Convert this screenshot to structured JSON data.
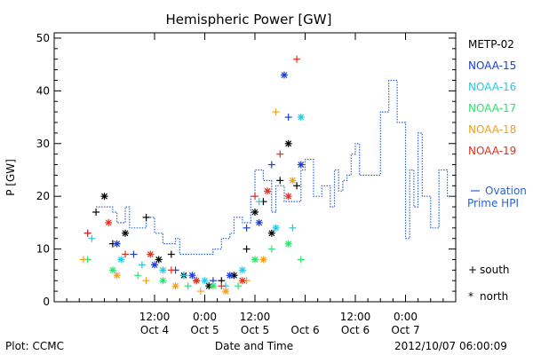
{
  "chart_data": {
    "type": "scatter",
    "title": "Hemispheric Power [GW]",
    "ylabel": "P [GW]",
    "xlabel": "Date and Time",
    "footer_left": "Plot: CCMC",
    "footer_right": "2012/10/07 06:00:09",
    "ylim": [
      0,
      51
    ],
    "xlim": [
      "2012-10-03 12:00",
      "2012-10-07 12:00"
    ],
    "yticks": [
      0,
      10,
      20,
      30,
      40,
      50
    ],
    "xticks": [
      {
        "t": "2012-10-04 12:00",
        "time": "12:00",
        "date": "Oct 4"
      },
      {
        "t": "2012-10-05 00:00",
        "time": "0:00",
        "date": "Oct 5"
      },
      {
        "t": "2012-10-05 12:00",
        "time": "12:00",
        "date": "Oct 5"
      },
      {
        "t": "2012-10-06 00:00",
        "time": "",
        "date": "Oct 6"
      },
      {
        "t": "2012-10-06 12:00",
        "time": "12:00",
        "date": "Oct 6"
      },
      {
        "t": "2012-10-07 00:00",
        "time": "0:00",
        "date": "Oct 7"
      }
    ],
    "ovation_label_1": "Ovation",
    "ovation_label_2": "Prime HPI",
    "ovation_color": "#2a64d0",
    "ovation": {
      "x": [
        "2012-10-03 22:00",
        "2012-10-04 02:00",
        "2012-10-04 03:00",
        "2012-10-04 05:00",
        "2012-10-04 06:00",
        "2012-10-04 10:00",
        "2012-10-04 12:00",
        "2012-10-04 14:00",
        "2012-10-04 17:00",
        "2012-10-04 18:00",
        "2012-10-04 20:00",
        "2012-10-05 00:00",
        "2012-10-05 02:00",
        "2012-10-05 04:00",
        "2012-10-05 06:00",
        "2012-10-05 07:00",
        "2012-10-05 09:00",
        "2012-10-05 11:00",
        "2012-10-05 12:00",
        "2012-10-05 14:00",
        "2012-10-05 16:00",
        "2012-10-05 17:00",
        "2012-10-05 19:00",
        "2012-10-05 21:00",
        "2012-10-05 23:00",
        "2012-10-06 00:00",
        "2012-10-06 02:00",
        "2012-10-06 04:00",
        "2012-10-06 06:00",
        "2012-10-06 07:00",
        "2012-10-06 08:00",
        "2012-10-06 09:00",
        "2012-10-06 10:00",
        "2012-10-06 11:00",
        "2012-10-06 12:00",
        "2012-10-06 13:00",
        "2012-10-06 14:00",
        "2012-10-06 16:00",
        "2012-10-06 18:00",
        "2012-10-06 20:00",
        "2012-10-06 22:00",
        "2012-10-07 00:00",
        "2012-10-07 01:00",
        "2012-10-07 02:00",
        "2012-10-07 03:00",
        "2012-10-07 04:00",
        "2012-10-07 06:00",
        "2012-10-07 08:00",
        "2012-10-07 10:00"
      ],
      "y": [
        18,
        17,
        15,
        18,
        14,
        16,
        13,
        11,
        12,
        9,
        9,
        9,
        10,
        12,
        13,
        16,
        15,
        20,
        25,
        23,
        17,
        22,
        19,
        19,
        25,
        27,
        20,
        22,
        18,
        25,
        21,
        23,
        24,
        28,
        30,
        24,
        24,
        24,
        36,
        42,
        34,
        12,
        25,
        18,
        32,
        20,
        14,
        25,
        20
      ]
    },
    "series": [
      {
        "name": "METP-02",
        "marker": "+",
        "color": "#000000",
        "x": [
          "2012-10-03 22:00",
          "2012-10-04 00:00",
          "2012-10-04 02:00",
          "2012-10-04 05:00",
          "2012-10-04 10:00",
          "2012-10-04 13:00",
          "2012-10-04 16:00",
          "2012-10-04 19:00",
          "2012-10-04 22:00",
          "2012-10-05 01:00",
          "2012-10-05 04:00",
          "2012-10-05 07:00",
          "2012-10-05 10:00",
          "2012-10-05 12:00",
          "2012-10-05 14:00",
          "2012-10-05 16:00",
          "2012-10-05 18:00",
          "2012-10-05 20:00",
          "2012-10-05 22:00"
        ],
        "y": [
          17,
          20,
          11,
          13,
          16,
          8,
          9,
          5,
          4,
          3,
          4,
          5,
          10,
          17,
          19,
          13,
          23,
          30,
          22
        ]
      },
      {
        "name": "NOAA-15",
        "marker": "+",
        "color": "#1a3dd0",
        "x": [
          "2012-10-03 20:00",
          "2012-10-04 03:00",
          "2012-10-04 07:00",
          "2012-10-04 12:00",
          "2012-10-04 17:00",
          "2012-10-04 21:00",
          "2012-10-05 02:00",
          "2012-10-05 06:00",
          "2012-10-05 10:00",
          "2012-10-05 13:00",
          "2012-10-05 16:00",
          "2012-10-05 19:00",
          "2012-10-05 20:00",
          "2012-10-05 23:00"
        ],
        "y": [
          13,
          11,
          9,
          7,
          6,
          5,
          4,
          5,
          14,
          15,
          26,
          43,
          35,
          26
        ]
      },
      {
        "name": "NOAA-16",
        "marker": "+",
        "color": "#28c8e0",
        "x": [
          "2012-10-03 21:00",
          "2012-10-04 04:00",
          "2012-10-04 09:00",
          "2012-10-04 14:00",
          "2012-10-04 19:00",
          "2012-10-05 00:00",
          "2012-10-05 05:00",
          "2012-10-05 09:00",
          "2012-10-05 13:00",
          "2012-10-05 17:00",
          "2012-10-05 21:00",
          "2012-10-05 23:00"
        ],
        "y": [
          12,
          8,
          7,
          6,
          5,
          4,
          3,
          6,
          19,
          14,
          14,
          35
        ]
      },
      {
        "name": "NOAA-17",
        "marker": "+",
        "color": "#30e070",
        "x": [
          "2012-10-03 20:00",
          "2012-10-04 02:00",
          "2012-10-04 08:00",
          "2012-10-04 14:00",
          "2012-10-04 20:00",
          "2012-10-05 02:00",
          "2012-10-05 08:00",
          "2012-10-05 12:00",
          "2012-10-05 16:00",
          "2012-10-05 20:00",
          "2012-10-05 23:00"
        ],
        "y": [
          8,
          6,
          5,
          4,
          3,
          3,
          3,
          8,
          10,
          11,
          8
        ]
      },
      {
        "name": "NOAA-18",
        "marker": "+",
        "color": "#f0a020",
        "x": [
          "2012-10-03 19:00",
          "2012-10-04 03:00",
          "2012-10-04 10:00",
          "2012-10-04 17:00",
          "2012-10-04 23:00",
          "2012-10-05 05:00",
          "2012-10-05 10:00",
          "2012-10-05 14:00",
          "2012-10-05 17:00",
          "2012-10-05 21:00"
        ],
        "y": [
          8,
          5,
          4,
          3,
          2,
          2,
          4,
          8,
          36,
          23
        ]
      },
      {
        "name": "NOAA-19",
        "marker": "+",
        "color": "#e03020",
        "x": [
          "2012-10-03 20:00",
          "2012-10-04 01:00",
          "2012-10-04 05:00",
          "2012-10-04 11:00",
          "2012-10-04 16:00",
          "2012-10-04 22:00",
          "2012-10-05 04:00",
          "2012-10-05 09:00",
          "2012-10-05 12:00",
          "2012-10-05 15:00",
          "2012-10-05 18:00",
          "2012-10-05 20:00",
          "2012-10-05 22:00"
        ],
        "y": [
          13,
          15,
          9,
          9,
          6,
          4,
          3,
          4,
          20,
          21,
          28,
          20,
          46
        ]
      }
    ],
    "marker_legend": [
      {
        "symbol": "+",
        "label": "south"
      },
      {
        "symbol": "*",
        "label": "north"
      }
    ],
    "grid": false,
    "legend": "right"
  }
}
